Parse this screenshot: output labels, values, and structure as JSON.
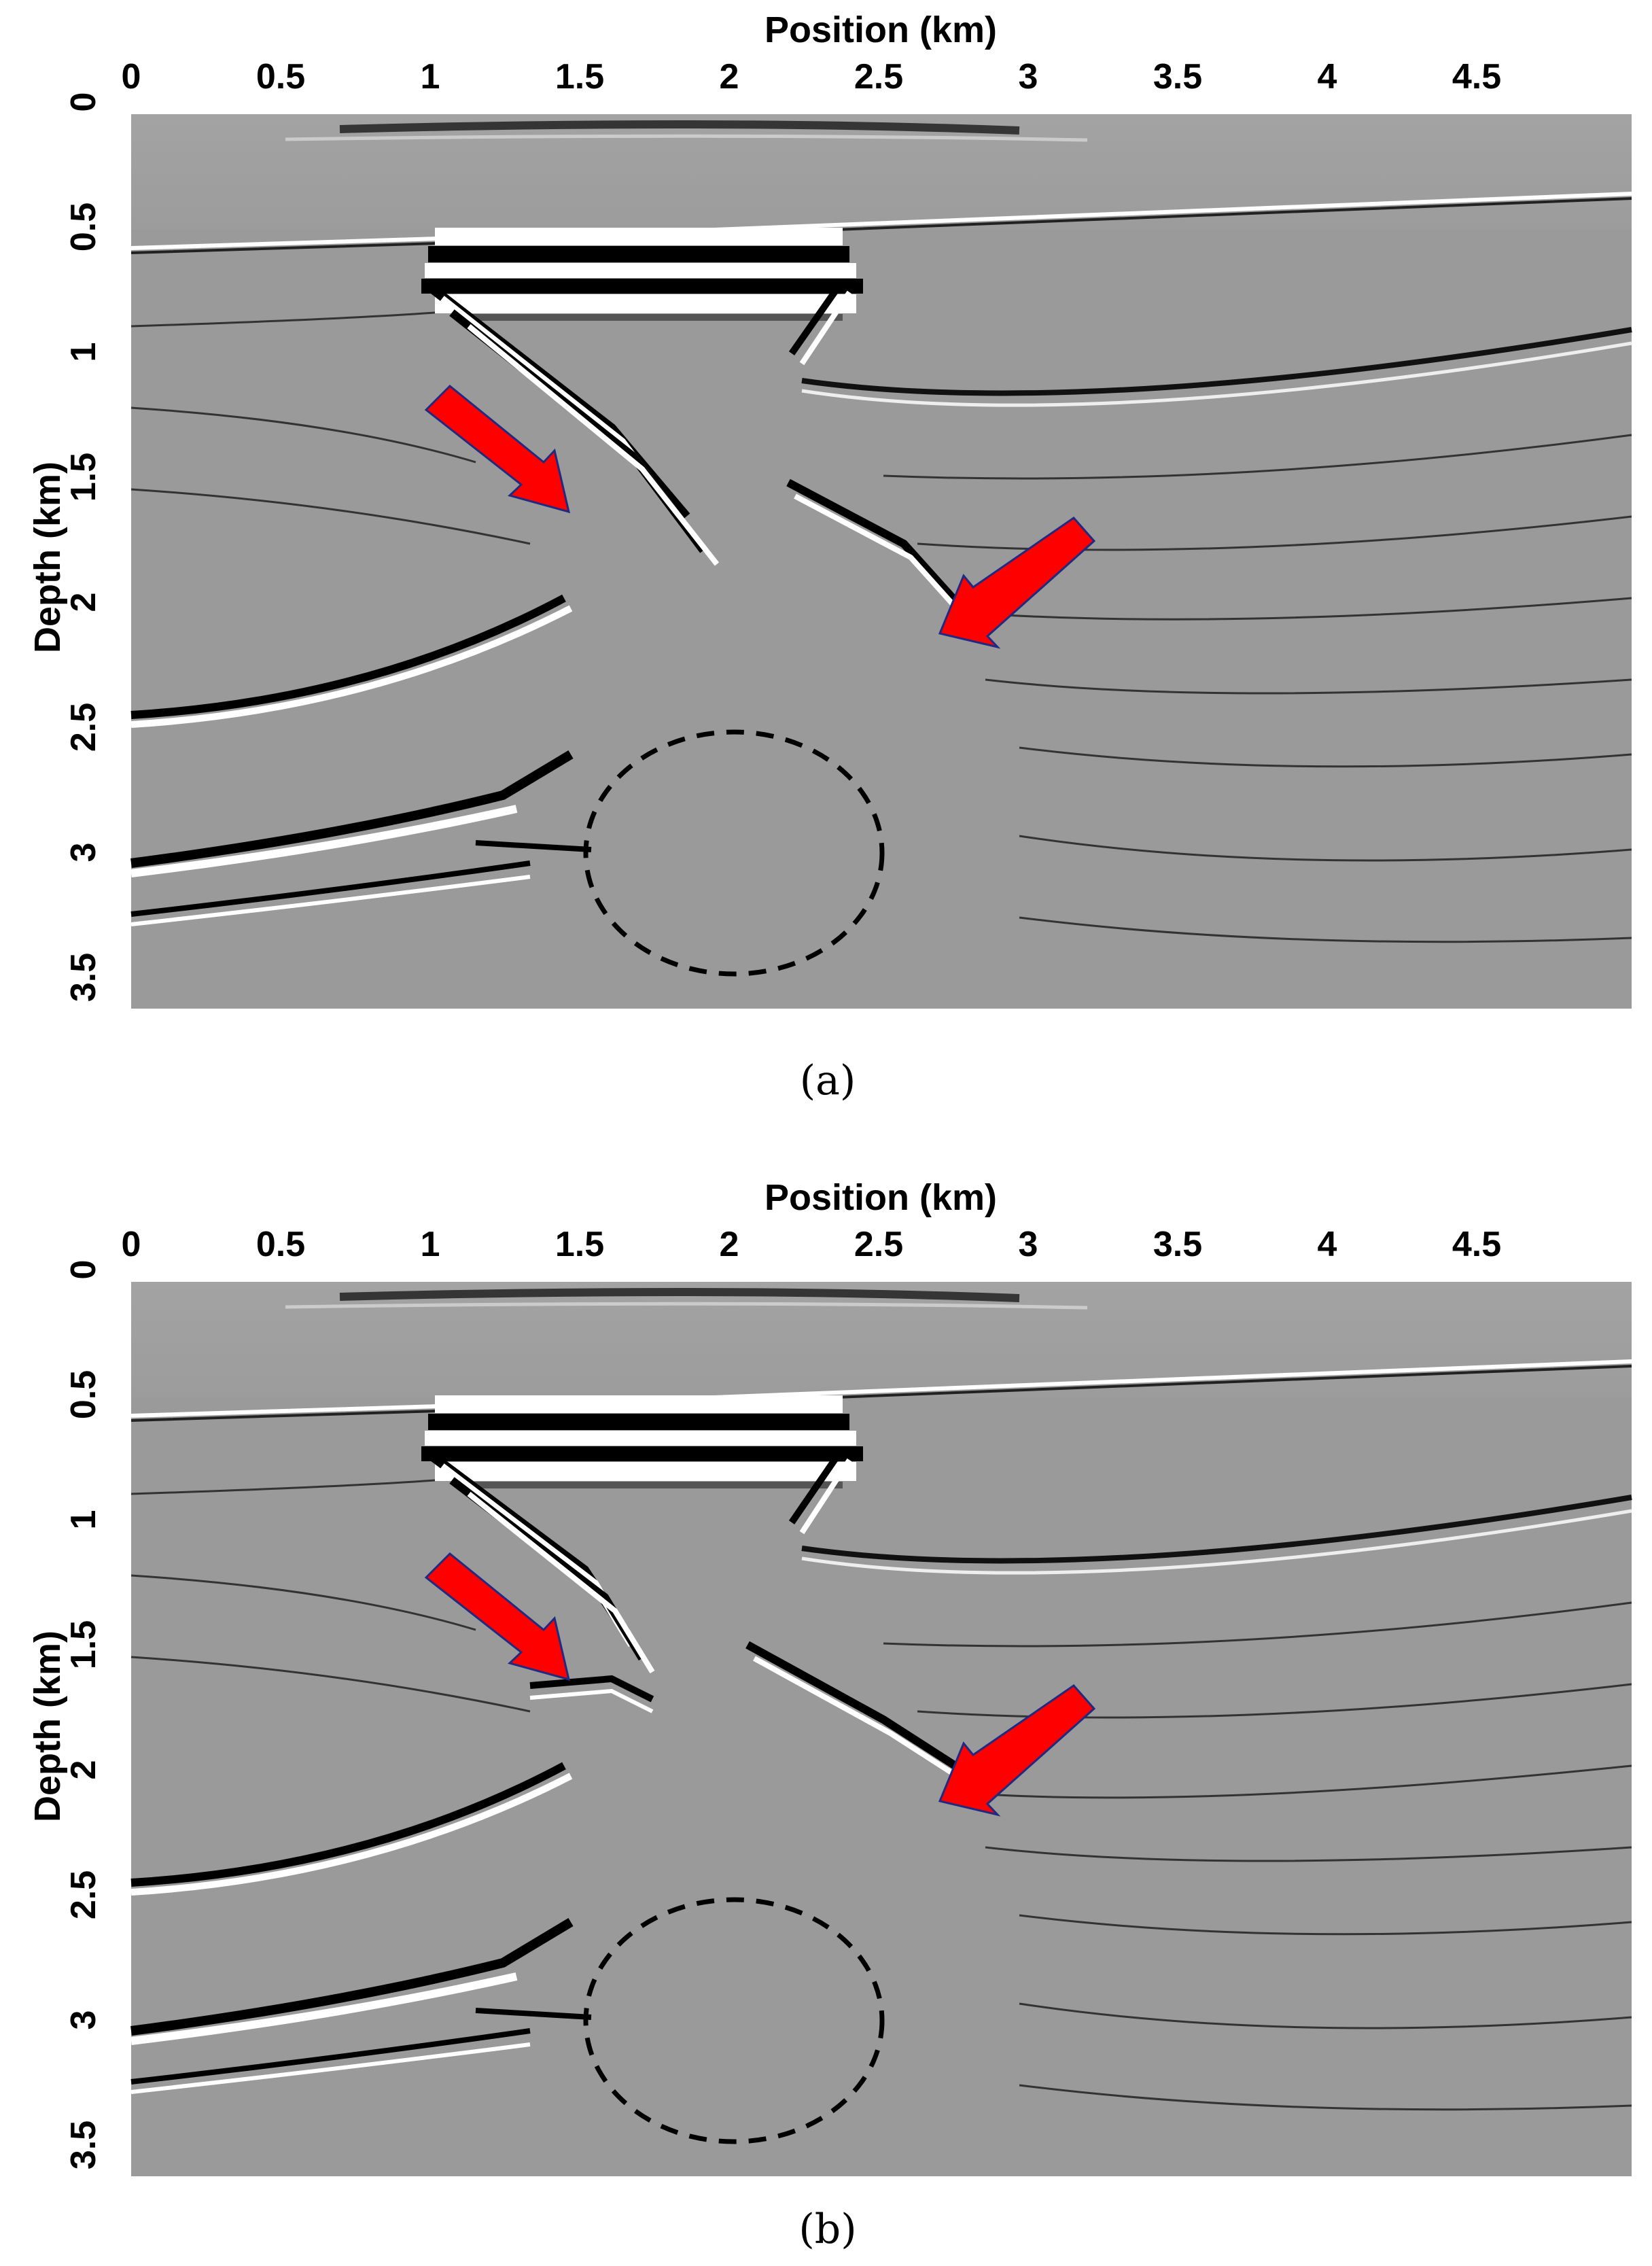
{
  "panels": [
    {
      "id": "a",
      "caption": "(a)",
      "x_label": "Position (km)",
      "y_label": "Depth (km)",
      "x_ticks": [
        "0",
        "0.5",
        "1",
        "1.5",
        "2",
        "2.5",
        "3",
        "3.5",
        "4",
        "4.5"
      ],
      "y_ticks": [
        "0",
        "0.5",
        "1",
        "1.5",
        "2",
        "2.5",
        "3",
        "3.5"
      ]
    },
    {
      "id": "b",
      "caption": "(b)",
      "x_label": "Position (km)",
      "y_label": "Depth (km)",
      "x_ticks": [
        "0",
        "0.5",
        "1",
        "1.5",
        "2",
        "2.5",
        "3",
        "3.5",
        "4",
        "4.5"
      ],
      "y_ticks": [
        "0",
        "0.5",
        "1",
        "1.5",
        "2",
        "2.5",
        "3",
        "3.5"
      ]
    }
  ],
  "colors": {
    "background_gray": "#9a9a9a",
    "arrow_fill": "#ff0000",
    "arrow_stroke": "#1f2a80",
    "circle_stroke": "#000000"
  }
}
